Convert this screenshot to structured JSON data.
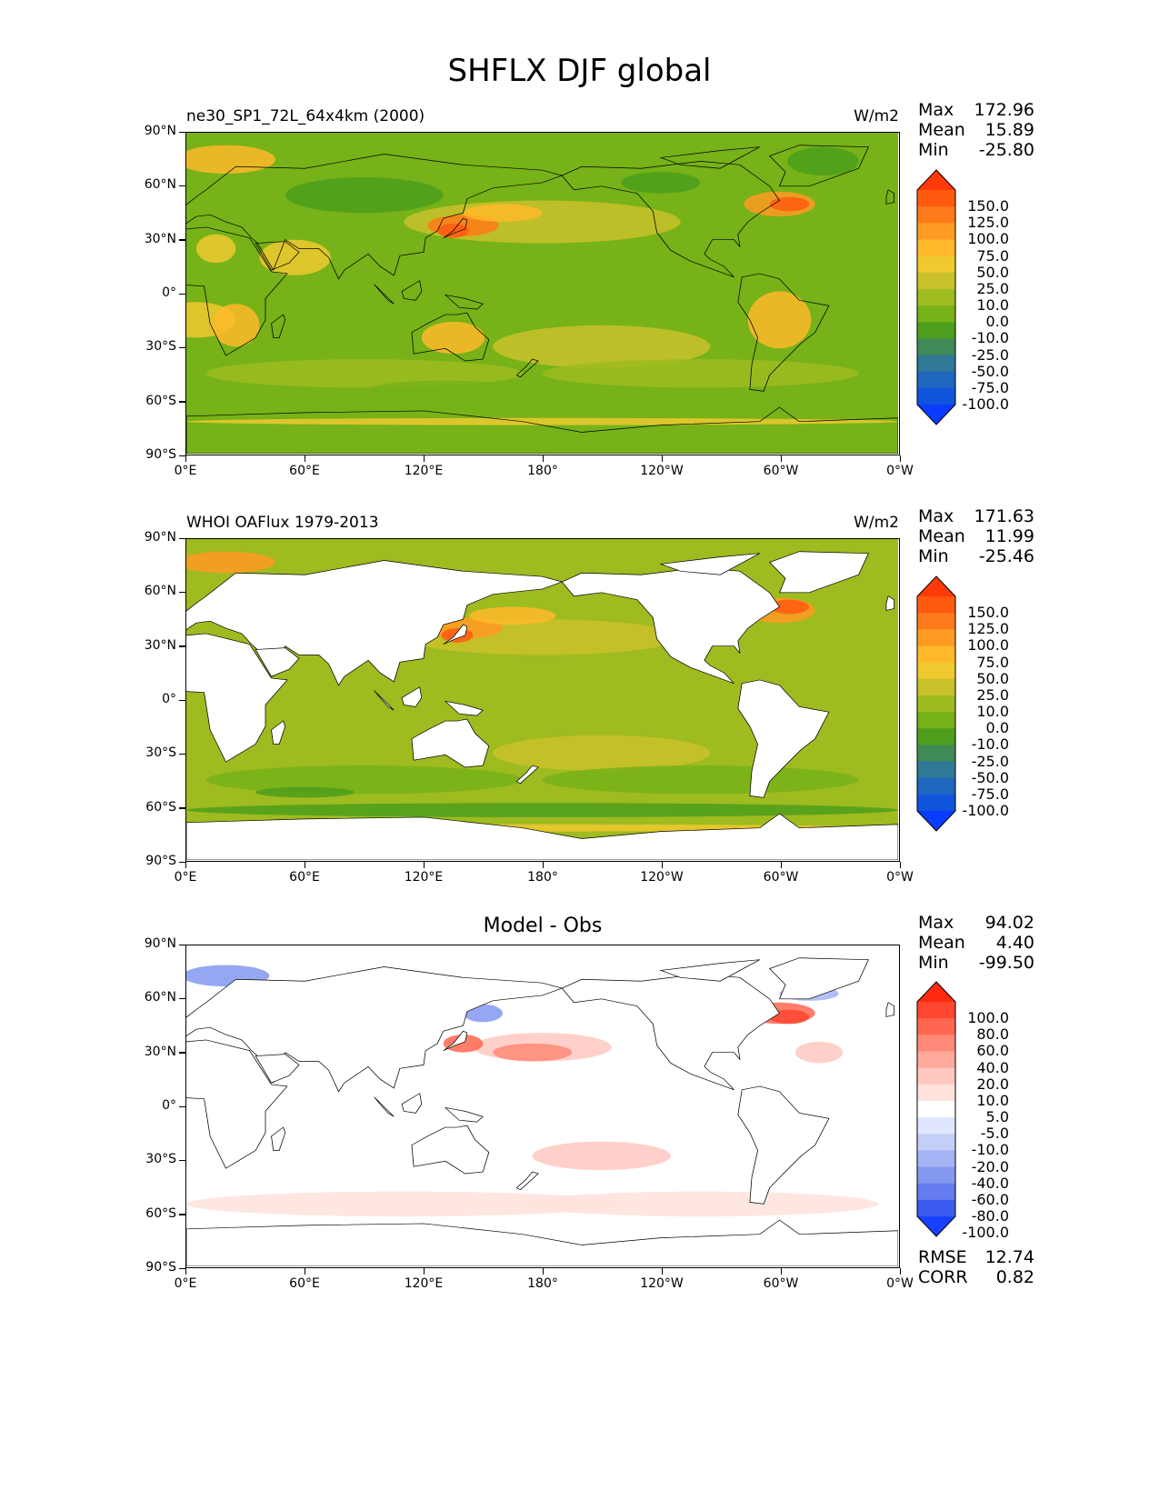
{
  "title": "SHFLX DJF global",
  "panels": [
    {
      "id": "model",
      "title_left": "ne30_SP1_72L_64x4km (2000)",
      "title_right": "W/m2",
      "title_center": "",
      "stats": [
        {
          "label": "Max",
          "value": "172.96"
        },
        {
          "label": "Mean",
          "value": "15.89"
        },
        {
          "label": "Min",
          "value": "-25.80"
        }
      ],
      "colorbar": {
        "labels": [
          "150.0",
          "125.0",
          "100.0",
          "75.0",
          "50.0",
          "25.0",
          "10.0",
          "0.0",
          "-10.0",
          "-25.0",
          "-50.0",
          "-75.0",
          "-100.0"
        ],
        "colors": [
          "#ff3a0a",
          "#ff5a10",
          "#ff7a1a",
          "#ff9a22",
          "#ffb82a",
          "#f0c830",
          "#c9c12a",
          "#9ebb20",
          "#76b218",
          "#4c9e1c",
          "#3f8a56",
          "#2f7896",
          "#1e66be",
          "#0f55dc",
          "#0a3cff"
        ]
      }
    },
    {
      "id": "obs",
      "title_left": "WHOI OAFlux 1979-2013",
      "title_right": "W/m2",
      "title_center": "",
      "stats": [
        {
          "label": "Max",
          "value": "171.63"
        },
        {
          "label": "Mean",
          "value": "11.99"
        },
        {
          "label": "Min",
          "value": "-25.46"
        }
      ],
      "colorbar": {
        "labels": [
          "150.0",
          "125.0",
          "100.0",
          "75.0",
          "50.0",
          "25.0",
          "10.0",
          "0.0",
          "-10.0",
          "-25.0",
          "-50.0",
          "-75.0",
          "-100.0"
        ],
        "colors": [
          "#ff3a0a",
          "#ff5a10",
          "#ff7a1a",
          "#ff9a22",
          "#ffb82a",
          "#f0c830",
          "#c9c12a",
          "#9ebb20",
          "#76b218",
          "#4c9e1c",
          "#3f8a56",
          "#2f7896",
          "#1e66be",
          "#0f55dc",
          "#0a3cff"
        ]
      }
    },
    {
      "id": "diff",
      "title_left": "",
      "title_right": "",
      "title_center": "Model - Obs",
      "stats": [
        {
          "label": "Max",
          "value": "94.02"
        },
        {
          "label": "Mean",
          "value": "4.40"
        },
        {
          "label": "Min",
          "value": "-99.50"
        }
      ],
      "extra_stats": [
        {
          "label": "RMSE",
          "value": "12.74"
        },
        {
          "label": "CORR",
          "value": "0.82"
        }
      ],
      "colorbar": {
        "labels": [
          "100.0",
          "80.0",
          "60.0",
          "40.0",
          "20.0",
          "10.0",
          "5.0",
          "-5.0",
          "-10.0",
          "-20.0",
          "-40.0",
          "-60.0",
          "-80.0",
          "-100.0"
        ],
        "colors": [
          "#ff2a10",
          "#ff4630",
          "#ff6650",
          "#ff8878",
          "#ffaa9c",
          "#ffc8c0",
          "#ffe2dc",
          "#ffffff",
          "#e0e6ff",
          "#c4cff8",
          "#a4b4f4",
          "#8498f0",
          "#647cee",
          "#3c5cf0",
          "#1840ff"
        ]
      }
    }
  ],
  "axes": {
    "lat_labels": [
      "90°N",
      "60°N",
      "30°N",
      "0°",
      "30°S",
      "60°S",
      "90°S"
    ],
    "lon_labels": [
      "0°E",
      "60°E",
      "120°E",
      "180°",
      "120°W",
      "60°W",
      "0°W"
    ]
  },
  "map_colors": {
    "land": "#ffffff",
    "coast": "#000000"
  }
}
